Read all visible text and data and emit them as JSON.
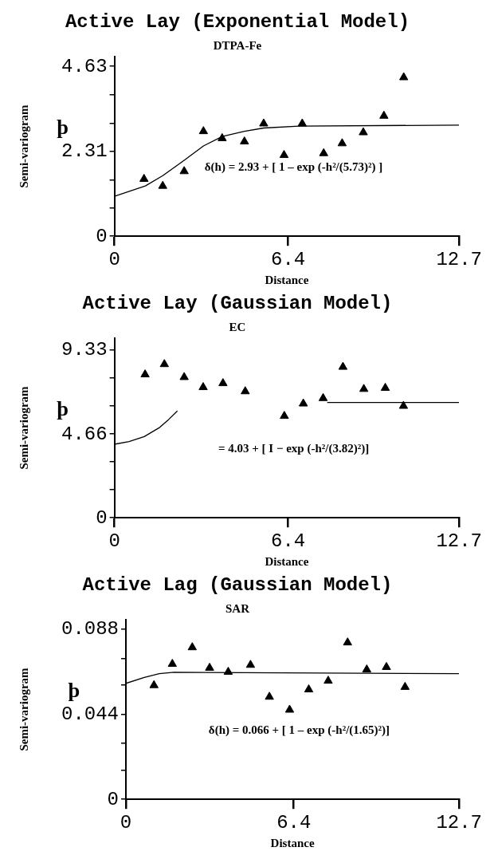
{
  "chart_data": [
    {
      "type": "scatter",
      "title": "Active Lay (Exponential Model)",
      "subtitle": "DTPA-Fe",
      "xlabel": "Distance",
      "ylabel": "Semi-variogram",
      "annotations": [
        "þ",
        "δ(h) = 2.93 + [ 1 – exp (-h²/(5.73)²) ]"
      ],
      "xlim": [
        0,
        12.7
      ],
      "ylim": [
        0,
        4.9
      ],
      "xticks": [
        0,
        6.4,
        12.7
      ],
      "yticks": [
        0,
        {
          "value": 0.77,
          "label": null
        },
        {
          "value": 1.54,
          "label": null
        },
        2.31,
        {
          "value": 3.08,
          "label": null
        },
        {
          "value": 3.86,
          "label": null
        },
        4.63
      ],
      "grid": false,
      "legend": false,
      "series": [
        {
          "type": "scatter",
          "marker": "triangle",
          "color": "#000000",
          "x": [
            1.09,
            1.78,
            2.57,
            3.28,
            3.97,
            4.79,
            5.5,
            6.25,
            6.92,
            7.71,
            8.39,
            9.17,
            9.93,
            10.66
          ],
          "values": [
            1.56,
            1.37,
            1.77,
            2.86,
            2.67,
            2.58,
            3.07,
            2.21,
            3.07,
            2.26,
            2.53,
            2.83,
            3.28,
            4.33
          ]
        },
        {
          "type": "line",
          "color": "#000000",
          "x": [
            0,
            1.14,
            1.78,
            2.57,
            3.28,
            3.97,
            4.79,
            5.5,
            6.8,
            12.7
          ],
          "values": [
            1.09,
            1.37,
            1.65,
            2.07,
            2.46,
            2.72,
            2.86,
            2.95,
            3.0,
            3.03
          ]
        }
      ]
    },
    {
      "type": "scatter",
      "title": "Active Lay (Gaussian Model)",
      "subtitle": "EC",
      "xlabel": "Distance",
      "ylabel": "Semi-variogram",
      "annotations": [
        "þ",
        "= 4.03 + [ I − exp (-h²/(3.82)²)]"
      ],
      "xlim": [
        0,
        12.7
      ],
      "ylim": [
        0,
        10
      ],
      "xticks": [
        0,
        6.4,
        12.7
      ],
      "yticks": [
        0,
        {
          "value": 1.56,
          "label": null
        },
        {
          "value": 3.11,
          "label": null
        },
        4.66,
        {
          "value": 6.22,
          "label": null
        },
        {
          "value": 7.78,
          "label": null
        },
        9.33
      ],
      "grid": false,
      "legend": false,
      "series": [
        {
          "type": "scatter",
          "marker": "triangle",
          "color": "#000000",
          "x": [
            1.13,
            1.84,
            2.57,
            3.27,
            4.0,
            4.82,
            6.26,
            6.96,
            7.69,
            8.42,
            9.19,
            9.98,
            10.65
          ],
          "values": [
            7.97,
            8.54,
            7.82,
            7.26,
            7.48,
            7.03,
            5.66,
            6.35,
            6.65,
            8.39,
            7.16,
            7.22,
            6.22
          ]
        },
        {
          "type": "line",
          "color": "#000000",
          "x": [
            0,
            0.54,
            1.1,
            1.67,
            2.0,
            2.32,
            5.0,
            7.84,
            12.7
          ],
          "values": [
            4.09,
            4.24,
            4.52,
            5.03,
            5.47,
            5.94,
            null,
            6.41,
            6.41
          ]
        }
      ]
    },
    {
      "type": "scatter",
      "title": "Active Lag (Gaussian Model)",
      "subtitle": "SAR",
      "xlabel": "Distance",
      "ylabel": "Semi-variogram",
      "annotations": [
        "þ",
        "δ(h) = 0.066 + [ 1 – exp (-h²/(1.65)²)]"
      ],
      "xlim": [
        0,
        12.7
      ],
      "ylim": [
        0,
        0.093
      ],
      "xticks": [
        0,
        6.4,
        12.7
      ],
      "yticks": [
        0,
        {
          "value": 0.015,
          "label": null
        },
        {
          "value": 0.029,
          "label": null
        },
        0.044,
        {
          "value": 0.059,
          "label": null
        },
        {
          "value": 0.073,
          "label": null
        },
        0.088
      ],
      "grid": false,
      "legend": false,
      "series": [
        {
          "type": "scatter",
          "marker": "triangle",
          "color": "#000000",
          "x": [
            1.07,
            1.77,
            2.53,
            3.19,
            3.9,
            4.75,
            5.47,
            6.24,
            6.97,
            7.71,
            8.45,
            9.18,
            9.93,
            10.64
          ],
          "values": [
            0.059,
            0.07,
            0.0786,
            0.068,
            0.0659,
            0.0695,
            0.053,
            0.0463,
            0.0568,
            0.0613,
            0.0811,
            0.0671,
            0.0684,
            0.0581
          ]
        },
        {
          "type": "line",
          "color": "#000000",
          "x": [
            0,
            0.7,
            1.27,
            1.83,
            12.7
          ],
          "values": [
            0.06,
            0.0631,
            0.065,
            0.0657,
            0.065
          ]
        }
      ]
    }
  ]
}
